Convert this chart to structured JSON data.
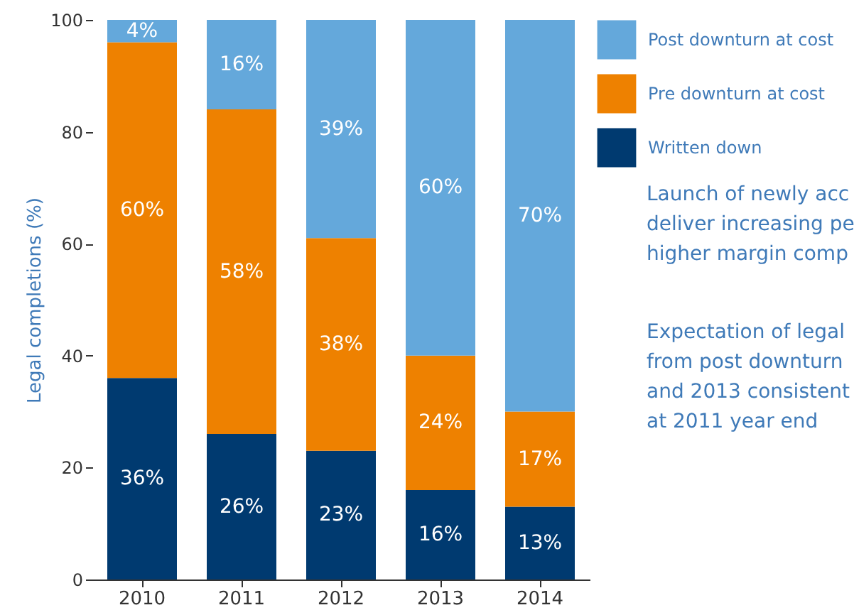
{
  "chart_data": {
    "type": "bar",
    "stacked": true,
    "ylabel": "Legal completions (%)",
    "categories": [
      "2010",
      "2011",
      "2012",
      "2013",
      "2014"
    ],
    "ylim": [
      0,
      100
    ],
    "yticks": [
      0,
      20,
      40,
      60,
      80,
      100
    ],
    "grid": false,
    "legend": "top right",
    "series": [
      {
        "name": "Written down",
        "color": "#003a70",
        "values": [
          36,
          26,
          23,
          16,
          13
        ],
        "value_labels": [
          "36%",
          "26%",
          "23%",
          "16%",
          "13%"
        ]
      },
      {
        "name": "Pre downturn at cost",
        "color": "#ee8100",
        "values": [
          60,
          58,
          38,
          24,
          17
        ],
        "value_labels": [
          "60%",
          "58%",
          "38%",
          "24%",
          "17%"
        ]
      },
      {
        "name": "Post downturn at cost",
        "color": "#64a8db",
        "values": [
          4,
          16,
          39,
          60,
          70
        ],
        "value_labels": [
          "4%",
          "16%",
          "39%",
          "60%",
          "70%"
        ]
      }
    ],
    "annotations": [
      "Launch of newly acc\ndeliver increasing pe\nhigher margin comp",
      "Expectation of legal\nfrom post downturn\nand 2013 consistent\nat 2011 year end"
    ]
  }
}
